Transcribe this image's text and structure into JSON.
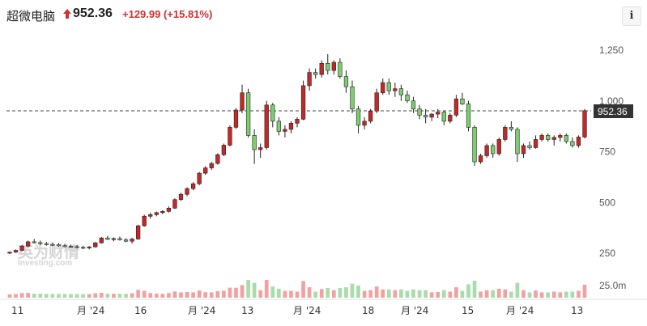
{
  "header": {
    "title": "超微电脑",
    "price": "952.36",
    "change": "+129.99 (+15.81%)",
    "info_icon": "i"
  },
  "colors": {
    "up": "#d32f2f",
    "down": "#4caf50",
    "up_body": "#c62828",
    "down_body": "#7dcf6e"
  },
  "watermark": {
    "cn": "英为财情",
    "en": "Investing.com"
  },
  "chart_data": {
    "type": "candlestick",
    "title": "超微电脑",
    "last_price": 952.36,
    "last_price_label": "952.36",
    "price_axis_ticks": [
      {
        "value": 1250,
        "label": "1,250"
      },
      {
        "value": 1000,
        "label": "1,000"
      },
      {
        "value": 750,
        "label": "750"
      },
      {
        "value": 500,
        "label": "500"
      },
      {
        "value": 250,
        "label": "250"
      }
    ],
    "volume_axis_label": "25.0m",
    "x_tick_labels": [
      "11",
      "月 '24",
      "16",
      "月 '24",
      "13",
      "月 '24",
      "18",
      "月 '24",
      "15",
      "月 '24",
      "13"
    ],
    "ylim": [
      150,
      1350
    ],
    "candles": [
      [
        250,
        258,
        246,
        255
      ],
      [
        255,
        268,
        252,
        264
      ],
      [
        264,
        290,
        260,
        285
      ],
      [
        285,
        312,
        280,
        306
      ],
      [
        306,
        320,
        298,
        302
      ],
      [
        302,
        312,
        290,
        297
      ],
      [
        297,
        306,
        287,
        294
      ],
      [
        294,
        303,
        285,
        291
      ],
      [
        291,
        300,
        282,
        287
      ],
      [
        287,
        296,
        279,
        284
      ],
      [
        284,
        292,
        276,
        282
      ],
      [
        282,
        290,
        273,
        279
      ],
      [
        279,
        286,
        270,
        277
      ],
      [
        277,
        285,
        269,
        281
      ],
      [
        281,
        305,
        278,
        301
      ],
      [
        301,
        330,
        297,
        325
      ],
      [
        325,
        335,
        315,
        318
      ],
      [
        318,
        328,
        308,
        322
      ],
      [
        322,
        332,
        312,
        316
      ],
      [
        316,
        324,
        304,
        309
      ],
      [
        309,
        325,
        297,
        320
      ],
      [
        320,
        390,
        316,
        385
      ],
      [
        385,
        440,
        380,
        432
      ],
      [
        432,
        450,
        420,
        440
      ],
      [
        440,
        455,
        432,
        450
      ],
      [
        450,
        462,
        442,
        456
      ],
      [
        456,
        480,
        450,
        472
      ],
      [
        472,
        520,
        468,
        514
      ],
      [
        514,
        548,
        508,
        540
      ],
      [
        540,
        575,
        530,
        568
      ],
      [
        568,
        600,
        560,
        592
      ],
      [
        592,
        650,
        585,
        644
      ],
      [
        644,
        678,
        636,
        670
      ],
      [
        670,
        700,
        660,
        692
      ],
      [
        692,
        742,
        686,
        735
      ],
      [
        735,
        790,
        728,
        782
      ],
      [
        782,
        880,
        776,
        870
      ],
      [
        870,
        965,
        862,
        955
      ],
      [
        955,
        1080,
        940,
        1040
      ],
      [
        1040,
        1060,
        820,
        830
      ],
      [
        830,
        860,
        690,
        760
      ],
      [
        760,
        790,
        720,
        770
      ],
      [
        770,
        1000,
        760,
        980
      ],
      [
        980,
        990,
        870,
        900
      ],
      [
        900,
        920,
        830,
        850
      ],
      [
        850,
        880,
        820,
        860
      ],
      [
        860,
        900,
        840,
        890
      ],
      [
        890,
        920,
        870,
        910
      ],
      [
        910,
        1100,
        905,
        1075
      ],
      [
        1075,
        1160,
        1050,
        1140
      ],
      [
        1140,
        1160,
        1110,
        1130
      ],
      [
        1130,
        1200,
        1115,
        1185
      ],
      [
        1185,
        1230,
        1130,
        1150
      ],
      [
        1150,
        1200,
        1130,
        1190
      ],
      [
        1190,
        1210,
        1110,
        1120
      ],
      [
        1120,
        1150,
        1040,
        1070
      ],
      [
        1070,
        1100,
        940,
        960
      ],
      [
        960,
        975,
        840,
        880
      ],
      [
        880,
        920,
        860,
        900
      ],
      [
        900,
        960,
        890,
        950
      ],
      [
        950,
        1060,
        940,
        1040
      ],
      [
        1040,
        1110,
        1030,
        1090
      ],
      [
        1090,
        1110,
        1030,
        1050
      ],
      [
        1050,
        1090,
        1020,
        1060
      ],
      [
        1060,
        1080,
        1000,
        1030
      ],
      [
        1030,
        1050,
        990,
        1000
      ],
      [
        1000,
        1020,
        940,
        960
      ],
      [
        960,
        980,
        910,
        930
      ],
      [
        930,
        960,
        890,
        920
      ],
      [
        920,
        940,
        900,
        935
      ],
      [
        935,
        960,
        915,
        945
      ],
      [
        945,
        950,
        880,
        900
      ],
      [
        900,
        940,
        890,
        930
      ],
      [
        930,
        1030,
        920,
        1010
      ],
      [
        1010,
        1040,
        980,
        985
      ],
      [
        985,
        1000,
        850,
        870
      ],
      [
        870,
        880,
        680,
        700
      ],
      [
        700,
        740,
        690,
        730
      ],
      [
        730,
        790,
        720,
        780
      ],
      [
        780,
        790,
        720,
        740
      ],
      [
        740,
        820,
        730,
        810
      ],
      [
        810,
        880,
        800,
        870
      ],
      [
        870,
        900,
        850,
        860
      ],
      [
        860,
        870,
        700,
        740
      ],
      [
        740,
        790,
        720,
        780
      ],
      [
        780,
        800,
        760,
        770
      ],
      [
        770,
        830,
        765,
        810
      ],
      [
        810,
        840,
        800,
        830
      ],
      [
        830,
        840,
        800,
        810
      ],
      [
        810,
        830,
        780,
        820
      ],
      [
        820,
        840,
        800,
        830
      ],
      [
        830,
        840,
        790,
        800
      ],
      [
        800,
        820,
        770,
        780
      ],
      [
        780,
        830,
        770,
        822
      ],
      [
        822,
        960,
        815,
        952
      ]
    ]
  }
}
